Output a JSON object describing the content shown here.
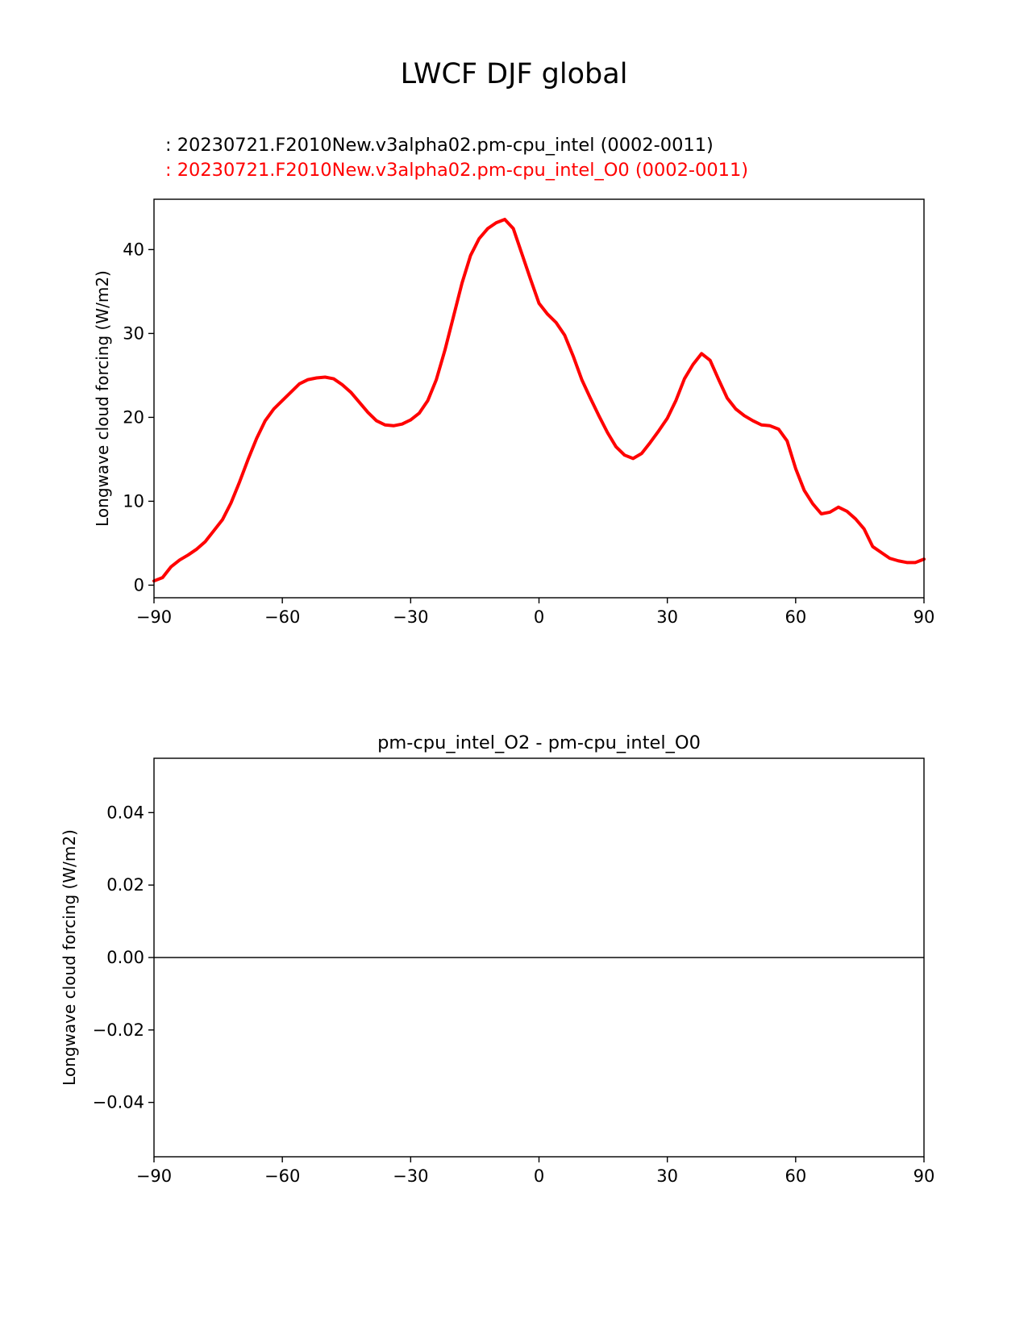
{
  "figure": {
    "title": "LWCF DJF global"
  },
  "chart_data": [
    {
      "type": "line",
      "legend": [
        {
          "label": ": 20230721.F2010New.v3alpha02.pm-cpu_intel (0002-0011)",
          "color": "#000000"
        },
        {
          "label": ": 20230721.F2010New.v3alpha02.pm-cpu_intel_O0 (0002-0011)",
          "color": "#ff0000"
        }
      ],
      "xlim": [
        -90,
        90
      ],
      "ylim": [
        -1.5,
        46
      ],
      "xticks": [
        -90,
        -60,
        -30,
        0,
        30,
        60,
        90
      ],
      "xtick_labels": [
        "−90",
        "−60",
        "−30",
        "0",
        "30",
        "60",
        "90"
      ],
      "yticks": [
        0,
        10,
        20,
        30,
        40
      ],
      "ytick_labels": [
        "0",
        "10",
        "20",
        "30",
        "40"
      ],
      "ylabel": "Longwave cloud forcing (W/m2)",
      "grid": false,
      "series": [
        {
          "color": "#ff0000",
          "points": [
            [
              -90,
              0.5
            ],
            [
              -88,
              0.9
            ],
            [
              -86,
              2.2
            ],
            [
              -84,
              3.0
            ],
            [
              -82,
              3.6
            ],
            [
              -80,
              4.3
            ],
            [
              -78,
              5.2
            ],
            [
              -76,
              6.5
            ],
            [
              -74,
              7.8
            ],
            [
              -72,
              9.8
            ],
            [
              -70,
              12.3
            ],
            [
              -68,
              15.0
            ],
            [
              -66,
              17.5
            ],
            [
              -64,
              19.6
            ],
            [
              -62,
              21.0
            ],
            [
              -60,
              22.0
            ],
            [
              -58,
              23.0
            ],
            [
              -56,
              24.0
            ],
            [
              -54,
              24.5
            ],
            [
              -52,
              24.7
            ],
            [
              -50,
              24.8
            ],
            [
              -48,
              24.6
            ],
            [
              -46,
              23.9
            ],
            [
              -44,
              23.0
            ],
            [
              -42,
              21.8
            ],
            [
              -40,
              20.6
            ],
            [
              -38,
              19.6
            ],
            [
              -36,
              19.1
            ],
            [
              -34,
              19.0
            ],
            [
              -32,
              19.2
            ],
            [
              -30,
              19.7
            ],
            [
              -28,
              20.5
            ],
            [
              -26,
              22.0
            ],
            [
              -24,
              24.5
            ],
            [
              -22,
              28.0
            ],
            [
              -20,
              32.0
            ],
            [
              -18,
              36.0
            ],
            [
              -16,
              39.3
            ],
            [
              -14,
              41.3
            ],
            [
              -12,
              42.5
            ],
            [
              -10,
              43.2
            ],
            [
              -8,
              43.6
            ],
            [
              -6,
              42.5
            ],
            [
              -4,
              39.5
            ],
            [
              -2,
              36.5
            ],
            [
              0,
              33.6
            ],
            [
              2,
              32.3
            ],
            [
              4,
              31.3
            ],
            [
              6,
              29.8
            ],
            [
              8,
              27.3
            ],
            [
              10,
              24.5
            ],
            [
              12,
              22.3
            ],
            [
              14,
              20.2
            ],
            [
              16,
              18.2
            ],
            [
              18,
              16.5
            ],
            [
              20,
              15.5
            ],
            [
              22,
              15.1
            ],
            [
              24,
              15.7
            ],
            [
              26,
              17.0
            ],
            [
              28,
              18.4
            ],
            [
              30,
              19.9
            ],
            [
              32,
              22.0
            ],
            [
              34,
              24.6
            ],
            [
              36,
              26.3
            ],
            [
              38,
              27.6
            ],
            [
              40,
              26.8
            ],
            [
              42,
              24.5
            ],
            [
              44,
              22.3
            ],
            [
              46,
              21.0
            ],
            [
              48,
              20.2
            ],
            [
              50,
              19.6
            ],
            [
              52,
              19.1
            ],
            [
              54,
              19.0
            ],
            [
              56,
              18.6
            ],
            [
              58,
              17.2
            ],
            [
              60,
              13.9
            ],
            [
              62,
              11.3
            ],
            [
              64,
              9.7
            ],
            [
              66,
              8.5
            ],
            [
              68,
              8.7
            ],
            [
              70,
              9.3
            ],
            [
              72,
              8.8
            ],
            [
              74,
              7.9
            ],
            [
              76,
              6.7
            ],
            [
              78,
              4.6
            ],
            [
              80,
              3.9
            ],
            [
              82,
              3.2
            ],
            [
              84,
              2.9
            ],
            [
              86,
              2.7
            ],
            [
              88,
              2.7
            ],
            [
              90,
              3.1
            ]
          ]
        }
      ]
    },
    {
      "type": "line",
      "title": "pm-cpu_intel_O2 - pm-cpu_intel_O0",
      "xlim": [
        -90,
        90
      ],
      "ylim": [
        -0.055,
        0.055
      ],
      "xticks": [
        -90,
        -60,
        -30,
        0,
        30,
        60,
        90
      ],
      "xtick_labels": [
        "−90",
        "−60",
        "−30",
        "0",
        "30",
        "60",
        "90"
      ],
      "yticks": [
        0.04,
        0.02,
        0.0,
        -0.02,
        -0.04
      ],
      "ytick_labels": [
        "0.04",
        "0.02",
        "0.00",
        "−0.02",
        "−0.04"
      ],
      "ylabel": "Longwave cloud forcing (W/m2)",
      "grid": false,
      "zero_line_color": "#808080",
      "series": [
        {
          "color": "#000000",
          "points": [
            [
              -90,
              0.0
            ],
            [
              90,
              0.0
            ]
          ]
        }
      ]
    }
  ]
}
